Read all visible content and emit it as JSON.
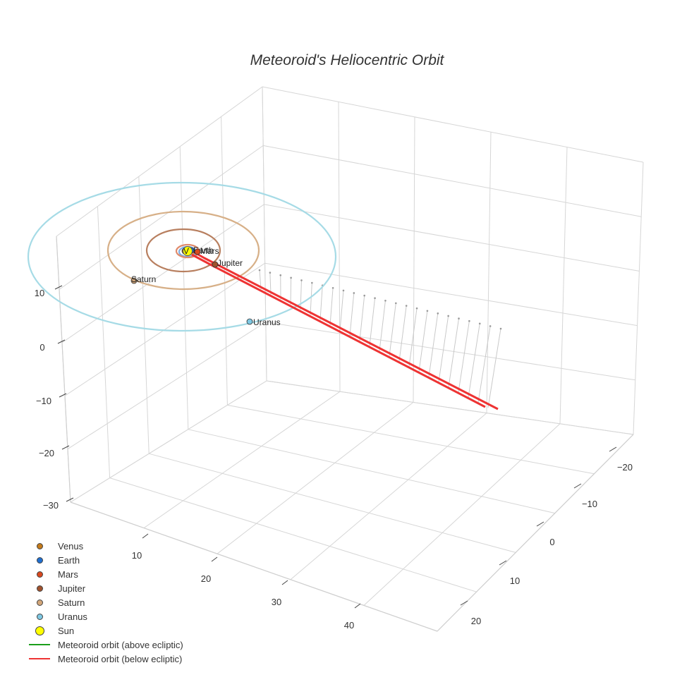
{
  "chart_data": {
    "type": "scatter3d",
    "title": "Meteoroid's Heliocentric Orbit",
    "axes": {
      "x": {
        "ticks": [
          "10",
          "20",
          "30",
          "40"
        ]
      },
      "y": {
        "ticks": [
          "−20",
          "−10",
          "0",
          "10",
          "20"
        ]
      },
      "z": {
        "ticks": [
          "10",
          "0",
          "−10",
          "−20",
          "−30"
        ]
      }
    },
    "grid": true,
    "legend_position": "bottom-left",
    "planets": [
      {
        "name": "Venus",
        "color": "#c47a1a",
        "label": ""
      },
      {
        "name": "Earth",
        "color": "#1f6fd1",
        "label": "Earth"
      },
      {
        "name": "Mars",
        "color": "#d9481e",
        "label": "Mars"
      },
      {
        "name": "Jupiter",
        "color": "#a0522d",
        "label": "Jupiter"
      },
      {
        "name": "Saturn",
        "color": "#d2a679",
        "label": "Saturn"
      },
      {
        "name": "Uranus",
        "color": "#7ec8e3",
        "label": "Uranus"
      }
    ],
    "sun": {
      "name": "Sun",
      "color": "#ffff00",
      "label": "V"
    },
    "orbits": [
      {
        "body": "Venus",
        "color": "#d9a05b"
      },
      {
        "body": "Earth",
        "color": "#7aaee6"
      },
      {
        "body": "Mars",
        "color": "#e08a6b"
      },
      {
        "body": "Jupiter",
        "color": "#b87f5f"
      },
      {
        "body": "Saturn",
        "color": "#d7b088"
      },
      {
        "body": "Uranus",
        "color": "#a6dbe6"
      }
    ],
    "series": [
      {
        "name": "Meteoroid orbit (above ecliptic)",
        "color": "#1a9e1a"
      },
      {
        "name": "Meteoroid orbit (below ecliptic)",
        "color": "#ee3333"
      }
    ]
  }
}
